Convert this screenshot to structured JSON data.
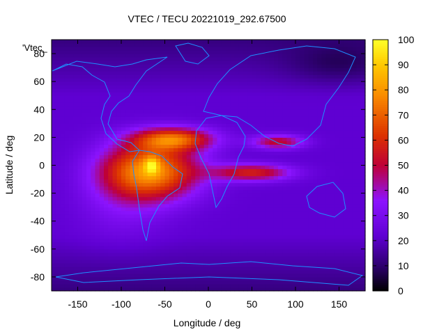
{
  "chart_data": {
    "type": "heatmap",
    "title": "VTEC / TECU 20221019_292.67500",
    "xlabel": "Longitude / deg",
    "ylabel": "Latitude / deg",
    "legend_key": "'Vtec_",
    "xlim": [
      -180,
      180
    ],
    "ylim": [
      -90,
      90
    ],
    "x_ticks": [
      -150,
      -100,
      -50,
      0,
      50,
      100,
      150
    ],
    "y_ticks": [
      -80,
      -60,
      -40,
      -20,
      0,
      20,
      40,
      60,
      80
    ],
    "colorbar": {
      "min": 0,
      "max": 100,
      "ticks": [
        0,
        10,
        20,
        30,
        40,
        50,
        60,
        70,
        80,
        90,
        100
      ],
      "palette": "black-blue-purple-red-orange-yellow"
    },
    "features": [
      {
        "name": "equatorial anomaly peak",
        "lon": -65,
        "lat": 0,
        "value": 100
      },
      {
        "name": "southern crest",
        "lon": -60,
        "lat": -15,
        "value": 80
      },
      {
        "name": "northern crest",
        "lon": -30,
        "lat": 20,
        "value": 65
      },
      {
        "name": "eastern tongue",
        "lon": 40,
        "lat": -5,
        "value": 55
      }
    ]
  },
  "colors": {
    "background": "#ffffff",
    "coastline": "#1e90ff",
    "axis": "#000000"
  }
}
